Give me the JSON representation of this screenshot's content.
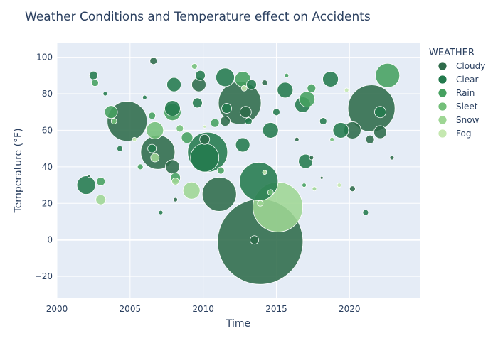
{
  "chart_data": {
    "type": "scatter",
    "title": "Weather Conditions and Temperature effect on Accidents",
    "xlabel": "Time",
    "ylabel": "Temperature (°F)",
    "xlim": [
      2000,
      2024.8
    ],
    "ylim": [
      -32,
      108
    ],
    "xticks": [
      2000,
      2005,
      2010,
      2015,
      2020
    ],
    "yticks": [
      -20,
      0,
      20,
      40,
      60,
      80,
      100
    ],
    "legend_title": "WEATHER",
    "legend_position": "right",
    "grid": true,
    "series": [
      {
        "name": "Cloudy",
        "color": "#2e6b4a",
        "points": [
          {
            "x": 2004.8,
            "y": 65,
            "r": 28
          },
          {
            "x": 2006.9,
            "y": 48,
            "r": 24
          },
          {
            "x": 2011.1,
            "y": 25,
            "r": 24
          },
          {
            "x": 2012.5,
            "y": 75,
            "r": 30
          },
          {
            "x": 2013.9,
            "y": -1,
            "r": 60
          },
          {
            "x": 2021.5,
            "y": 72,
            "r": 33
          },
          {
            "x": 2020.2,
            "y": 60,
            "r": 12
          },
          {
            "x": 2022.1,
            "y": 59,
            "r": 9
          },
          {
            "x": 2009.7,
            "y": 85,
            "r": 10
          },
          {
            "x": 2007.9,
            "y": 40,
            "r": 10
          },
          {
            "x": 2012.9,
            "y": 70,
            "r": 8
          },
          {
            "x": 2011.5,
            "y": 65,
            "r": 7
          },
          {
            "x": 2010.1,
            "y": 55,
            "r": 7
          },
          {
            "x": 2006.6,
            "y": 98,
            "r": 5
          },
          {
            "x": 2013.5,
            "y": 0,
            "r": 6
          },
          {
            "x": 2021.4,
            "y": 55,
            "r": 6
          },
          {
            "x": 2020.2,
            "y": 28,
            "r": 4
          },
          {
            "x": 2022.9,
            "y": 45,
            "r": 3
          },
          {
            "x": 2002.2,
            "y": 35,
            "r": 2
          },
          {
            "x": 2008.1,
            "y": 22,
            "r": 3
          },
          {
            "x": 2014.2,
            "y": 86,
            "r": 4
          },
          {
            "x": 2016.4,
            "y": 55,
            "r": 3
          },
          {
            "x": 2017.4,
            "y": 45,
            "r": 3
          },
          {
            "x": 2018.1,
            "y": 34,
            "r": 2
          }
        ]
      },
      {
        "name": "Clear",
        "color": "#237a4d",
        "points": [
          {
            "x": 2010.3,
            "y": 48,
            "r": 28
          },
          {
            "x": 2013.8,
            "y": 32,
            "r": 27
          },
          {
            "x": 2010.1,
            "y": 45,
            "r": 20
          },
          {
            "x": 2002.0,
            "y": 30,
            "r": 13
          },
          {
            "x": 2007.9,
            "y": 72,
            "r": 11
          },
          {
            "x": 2011.5,
            "y": 89,
            "r": 13
          },
          {
            "x": 2014.6,
            "y": 60,
            "r": 11
          },
          {
            "x": 2012.7,
            "y": 52,
            "r": 10
          },
          {
            "x": 2015.6,
            "y": 82,
            "r": 11
          },
          {
            "x": 2016.8,
            "y": 74,
            "r": 11
          },
          {
            "x": 2017.0,
            "y": 43,
            "r": 10
          },
          {
            "x": 2018.7,
            "y": 88,
            "r": 11
          },
          {
            "x": 2019.4,
            "y": 60,
            "r": 11
          },
          {
            "x": 2022.1,
            "y": 70,
            "r": 8
          },
          {
            "x": 2009.8,
            "y": 90,
            "r": 7
          },
          {
            "x": 2009.6,
            "y": 75,
            "r": 7
          },
          {
            "x": 2013.3,
            "y": 85,
            "r": 7
          },
          {
            "x": 2008.0,
            "y": 85,
            "r": 10
          },
          {
            "x": 2006.5,
            "y": 50,
            "r": 6
          },
          {
            "x": 2002.5,
            "y": 90,
            "r": 6
          },
          {
            "x": 2015.0,
            "y": 70,
            "r": 5
          },
          {
            "x": 2011.6,
            "y": 72,
            "r": 7
          },
          {
            "x": 2004.3,
            "y": 50,
            "r": 4
          },
          {
            "x": 2007.1,
            "y": 15,
            "r": 3
          },
          {
            "x": 2021.1,
            "y": 15,
            "r": 4
          },
          {
            "x": 2006.0,
            "y": 78,
            "r": 3
          },
          {
            "x": 2003.3,
            "y": 80,
            "r": 3
          },
          {
            "x": 2013.1,
            "y": 65,
            "r": 5
          },
          {
            "x": 2018.2,
            "y": 65,
            "r": 5
          }
        ]
      },
      {
        "name": "Rain",
        "color": "#46a160",
        "points": [
          {
            "x": 2022.6,
            "y": 90,
            "r": 17
          },
          {
            "x": 2007.9,
            "y": 70,
            "r": 12
          },
          {
            "x": 2012.7,
            "y": 88,
            "r": 11
          },
          {
            "x": 2003.7,
            "y": 70,
            "r": 9
          },
          {
            "x": 2017.1,
            "y": 77,
            "r": 11
          },
          {
            "x": 2008.9,
            "y": 56,
            "r": 8
          },
          {
            "x": 2010.8,
            "y": 64,
            "r": 6
          },
          {
            "x": 2008.1,
            "y": 34,
            "r": 7
          },
          {
            "x": 2006.5,
            "y": 68,
            "r": 5
          },
          {
            "x": 2017.4,
            "y": 83,
            "r": 6
          },
          {
            "x": 2002.6,
            "y": 86,
            "r": 5
          },
          {
            "x": 2003.0,
            "y": 32,
            "r": 6
          },
          {
            "x": 2011.2,
            "y": 38,
            "r": 5
          },
          {
            "x": 2015.7,
            "y": 90,
            "r": 3
          },
          {
            "x": 2005.7,
            "y": 40,
            "r": 4
          },
          {
            "x": 2016.9,
            "y": 30,
            "r": 3
          }
        ]
      },
      {
        "name": "Sleet",
        "color": "#73bf79",
        "points": [
          {
            "x": 2006.7,
            "y": 60,
            "r": 12
          },
          {
            "x": 2003.9,
            "y": 65,
            "r": 4
          },
          {
            "x": 2018.8,
            "y": 55,
            "r": 3
          },
          {
            "x": 2009.4,
            "y": 95,
            "r": 4
          },
          {
            "x": 2008.4,
            "y": 61,
            "r": 5
          },
          {
            "x": 2014.6,
            "y": 26,
            "r": 4
          }
        ]
      },
      {
        "name": "Snow",
        "color": "#9ed694",
        "points": [
          {
            "x": 2015.1,
            "y": 18,
            "r": 35
          },
          {
            "x": 2009.2,
            "y": 27,
            "r": 12
          },
          {
            "x": 2003.0,
            "y": 22,
            "r": 7
          },
          {
            "x": 2006.7,
            "y": 45,
            "r": 6
          },
          {
            "x": 2008.1,
            "y": 32,
            "r": 5
          },
          {
            "x": 2013.9,
            "y": 20,
            "r": 4
          },
          {
            "x": 2017.6,
            "y": 28,
            "r": 3
          }
        ]
      },
      {
        "name": "Fog",
        "color": "#c5e8b0",
        "points": [
          {
            "x": 2012.8,
            "y": 83,
            "r": 4
          },
          {
            "x": 2019.8,
            "y": 82,
            "r": 3
          },
          {
            "x": 2014.2,
            "y": 37,
            "r": 3
          },
          {
            "x": 2005.3,
            "y": 55,
            "r": 3
          },
          {
            "x": 2019.3,
            "y": 30,
            "r": 3
          },
          {
            "x": 2010.1,
            "y": 62,
            "r": 2
          }
        ]
      }
    ]
  }
}
